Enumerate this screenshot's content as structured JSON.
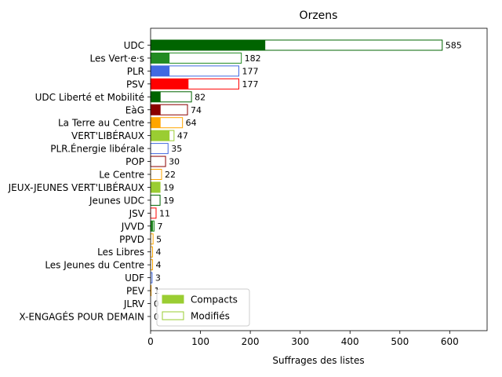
{
  "chart_data": {
    "type": "bar",
    "orientation": "horizontal",
    "title": "Orzens",
    "xlabel": "Suffrages des listes",
    "ylabel": "",
    "xlim": [
      0,
      675
    ],
    "xticks": [
      0,
      100,
      200,
      300,
      400,
      500,
      600
    ],
    "grid": false,
    "legend_position": "lower-left",
    "legend": [
      {
        "label": "Compacts",
        "style": "filled",
        "color": "#9acd32"
      },
      {
        "label": "Modifiés",
        "style": "outline",
        "color": "#9acd32"
      }
    ],
    "bars": [
      {
        "label": "UDC",
        "total": 585,
        "compact": 230,
        "color": "#006400"
      },
      {
        "label": "Les Vert·e·s",
        "total": 182,
        "compact": 38,
        "color": "#228b22"
      },
      {
        "label": "PLR",
        "total": 177,
        "compact": 38,
        "color": "#4169e1"
      },
      {
        "label": "PSV",
        "total": 177,
        "compact": 76,
        "color": "#ff0000"
      },
      {
        "label": "UDC Liberté et Mobilité",
        "total": 82,
        "compact": 20,
        "color": "#006400"
      },
      {
        "label": "EàG",
        "total": 74,
        "compact": 20,
        "color": "#8b0000"
      },
      {
        "label": "La Terre au Centre",
        "total": 64,
        "compact": 20,
        "color": "#ffa500"
      },
      {
        "label": "VERT'LIBÉRAUX",
        "total": 47,
        "compact": 38,
        "color": "#9acd32"
      },
      {
        "label": "PLR.Énergie libérale",
        "total": 35,
        "compact": 0,
        "color": "#4169e1"
      },
      {
        "label": "POP",
        "total": 30,
        "compact": 0,
        "color": "#8b0000"
      },
      {
        "label": "Le Centre",
        "total": 22,
        "compact": 0,
        "color": "#ffa500"
      },
      {
        "label": "JEUX-JEUNES VERT'LIBÉRAUX",
        "total": 19,
        "compact": 19,
        "color": "#9acd32"
      },
      {
        "label": "Jeunes UDC",
        "total": 19,
        "compact": 0,
        "color": "#006400"
      },
      {
        "label": "JSV",
        "total": 11,
        "compact": 0,
        "color": "#ff0000"
      },
      {
        "label": "JVVD",
        "total": 7,
        "compact": 5,
        "color": "#228b22"
      },
      {
        "label": "PPVD",
        "total": 5,
        "compact": 0,
        "color": "#ffa500"
      },
      {
        "label": "Les Libres",
        "total": 4,
        "compact": 0,
        "color": "#ffa500"
      },
      {
        "label": "Les Jeunes du Centre",
        "total": 4,
        "compact": 0,
        "color": "#ffa500"
      },
      {
        "label": "UDF",
        "total": 3,
        "compact": 0,
        "color": "#4169e1"
      },
      {
        "label": "PEV",
        "total": 1,
        "compact": 0,
        "color": "#ffa500"
      },
      {
        "label": "JLRV",
        "total": 0,
        "compact": 0,
        "color": "#4169e1"
      },
      {
        "label": "X-ENGAGÉS POUR DEMAIN",
        "total": 0,
        "compact": 0,
        "color": "#ffa500"
      }
    ]
  }
}
